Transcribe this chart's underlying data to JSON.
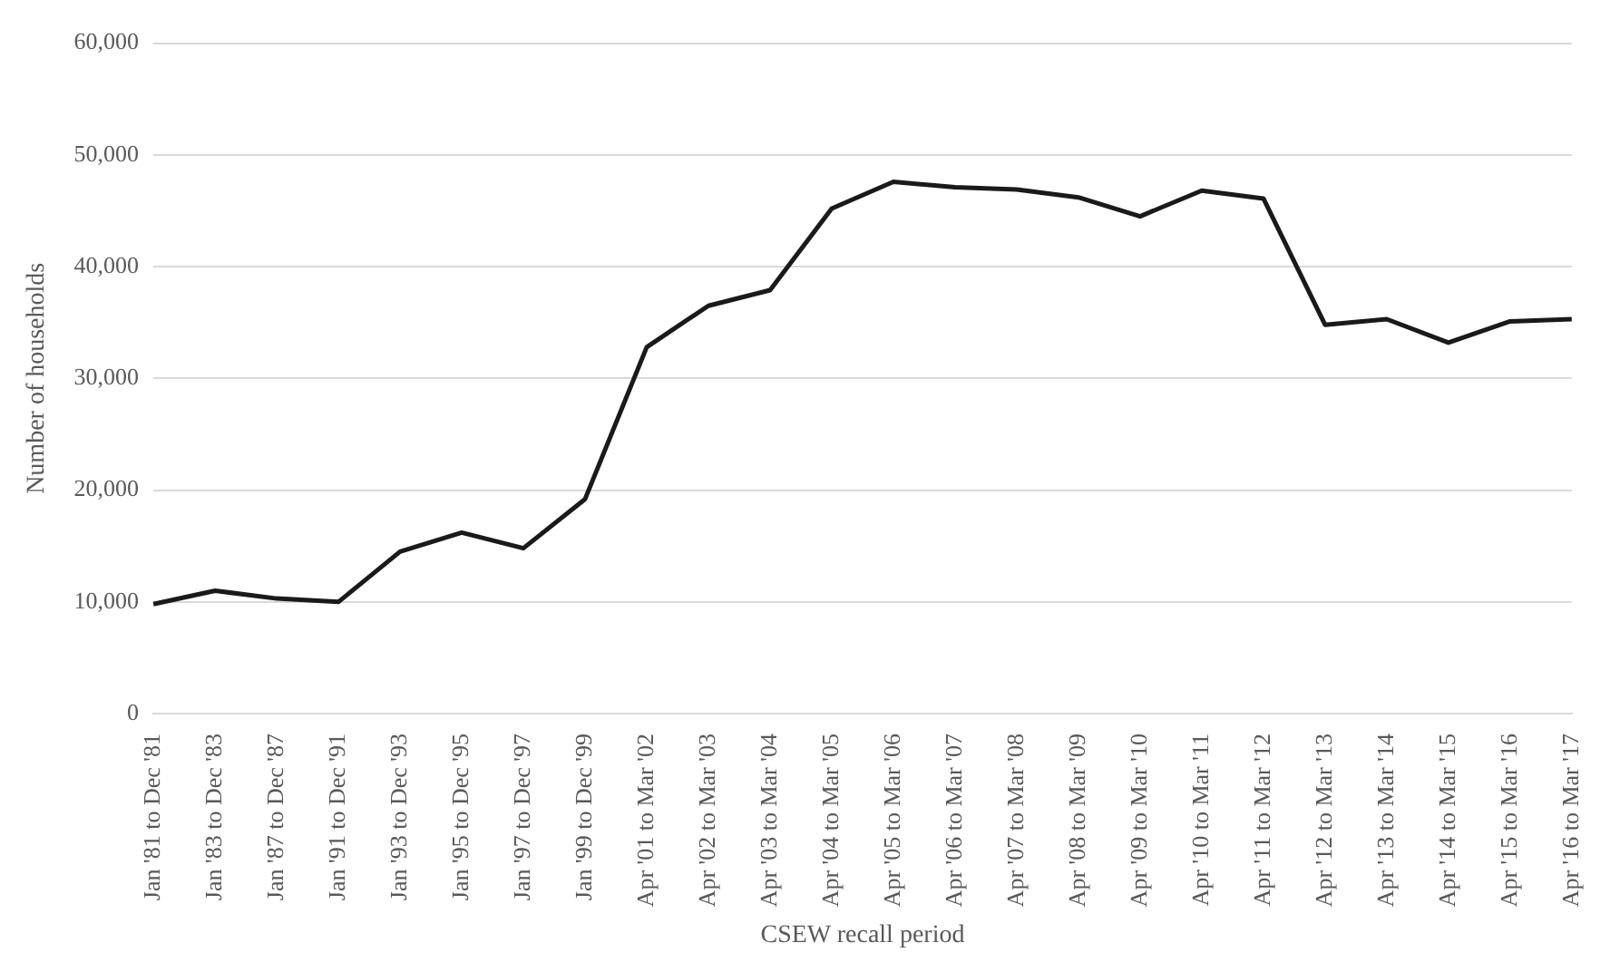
{
  "chart_data": {
    "type": "line",
    "xlabel": "CSEW recall period",
    "ylabel": "Number of households",
    "categories": [
      "Jan '81 to Dec '81",
      "Jan '83 to Dec '83",
      "Jan '87 to Dec '87",
      "Jan '91 to Dec '91",
      "Jan '93 to Dec '93",
      "Jan '95 to Dec '95",
      "Jan '97 to Dec '97",
      "Jan '99 to Dec '99",
      "Apr '01 to Mar '02",
      "Apr '02 to Mar '03",
      "Apr '03 to Mar '04",
      "Apr '04 to Mar '05",
      "Apr '05 to Mar '06",
      "Apr '06 to Mar '07",
      "Apr '07 to Mar '08",
      "Apr '08 to Mar '09",
      "Apr '09 to Mar '10",
      "Apr '10 to Mar '11",
      "Apr '11 to Mar '12",
      "Apr '12 to Mar '13",
      "Apr '13 to Mar '14",
      "Apr '14 to Mar '15",
      "Apr '15 to Mar '16",
      "Apr '16 to Mar '17"
    ],
    "series": [
      {
        "color": "#1a1a1a",
        "values": [
          9800,
          11000,
          10300,
          10000,
          14500,
          16200,
          14800,
          19200,
          32800,
          36500,
          37900,
          45200,
          47600,
          47100,
          46900,
          46200,
          44500,
          46800,
          46100,
          34800,
          35300,
          33200,
          35100,
          35300
        ]
      }
    ],
    "ylim": [
      0,
      60000
    ],
    "yticks": [
      {
        "value": 0,
        "label": "0"
      },
      {
        "value": 10000,
        "label": "10,000"
      },
      {
        "value": 20000,
        "label": "20,000"
      },
      {
        "value": 30000,
        "label": "30,000"
      },
      {
        "value": 40000,
        "label": "40,000"
      },
      {
        "value": 50000,
        "label": "50,000"
      },
      {
        "value": 60000,
        "label": "60,000"
      }
    ],
    "grid": "y",
    "legend": false,
    "marker": "none",
    "line_style": "solid"
  }
}
